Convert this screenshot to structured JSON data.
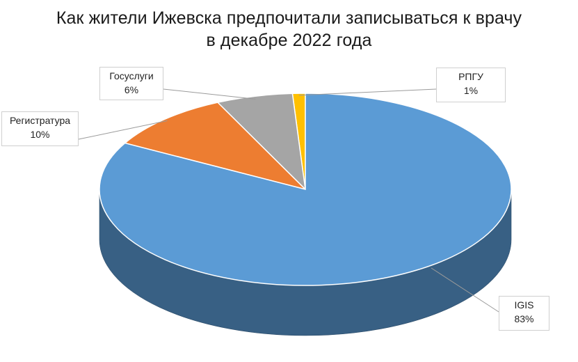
{
  "chart_data": {
    "type": "pie",
    "title": "Как жители Ижевска предпочитали записываться к врачу",
    "subtitle": "в декабре 2022 года",
    "style": "3d",
    "slices": [
      {
        "label": "IGIS",
        "value": 83,
        "value_label": "83%",
        "color": "#5b9bd5"
      },
      {
        "label": "Регистратура",
        "value": 10,
        "value_label": "10%",
        "color": "#ed7d31"
      },
      {
        "label": "Госуслуги",
        "value": 6,
        "value_label": "6%",
        "color": "#a5a5a5"
      },
      {
        "label": "РПГУ",
        "value": 1,
        "value_label": "1%",
        "color": "#ffc000"
      }
    ]
  }
}
